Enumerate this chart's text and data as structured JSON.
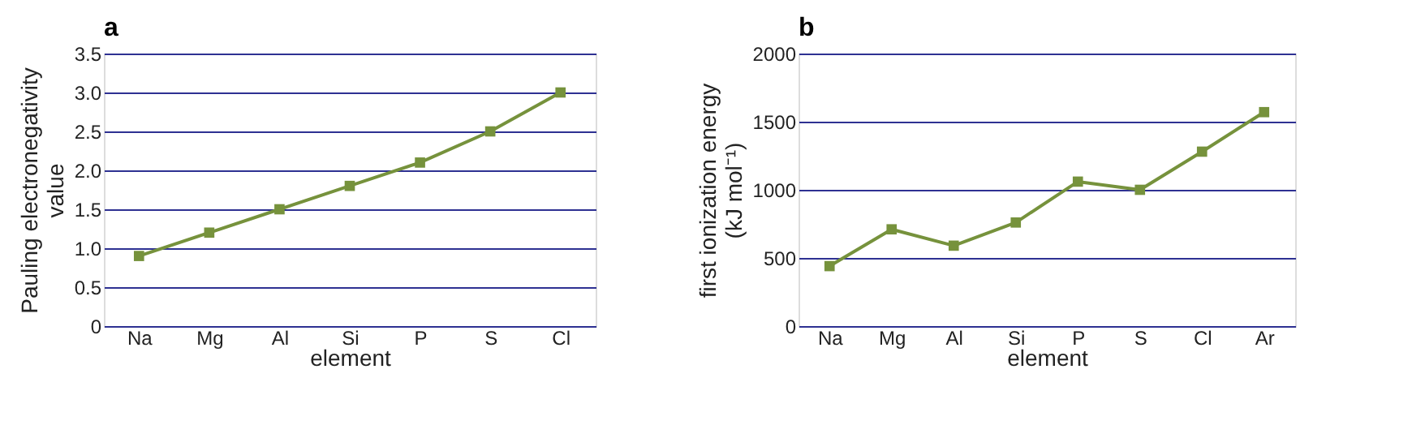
{
  "chart_data": [
    {
      "type": "line",
      "title": "a",
      "xlabel": "element",
      "ylabel": "Pauling electronegativity value",
      "categories": [
        "Na",
        "Mg",
        "Al",
        "Si",
        "P",
        "S",
        "Cl"
      ],
      "series": [
        {
          "color": "#76923c",
          "values": [
            0.9,
            1.2,
            1.5,
            1.8,
            2.1,
            2.5,
            3.0
          ]
        }
      ],
      "ylim": [
        0,
        3.5
      ],
      "yticks": [
        {
          "value": 0,
          "label": "0"
        },
        0.5,
        {
          "value": 1,
          "label": "1.0"
        },
        1.5,
        {
          "value": 2,
          "label": "2.0"
        },
        2.5,
        {
          "value": 3,
          "label": "3.0"
        },
        3.5
      ],
      "grid": "y",
      "marker": "square",
      "line_style": "solid",
      "legend": false
    },
    {
      "type": "line",
      "title": "b",
      "xlabel": "element",
      "ylabel": "first ionization energy (kJ mol⁻¹)",
      "categories": [
        "Na",
        "Mg",
        "Al",
        "Si",
        "P",
        "S",
        "Cl",
        "Ar"
      ],
      "series": [
        {
          "color": "#76923c",
          "values": [
            440,
            710,
            590,
            760,
            1060,
            1000,
            1280,
            1570
          ]
        }
      ],
      "ylim": [
        0,
        2000
      ],
      "yticks": [
        0,
        500,
        1000,
        1500,
        2000
      ],
      "grid": "y",
      "marker": "square",
      "line_style": "solid",
      "legend": false
    }
  ]
}
